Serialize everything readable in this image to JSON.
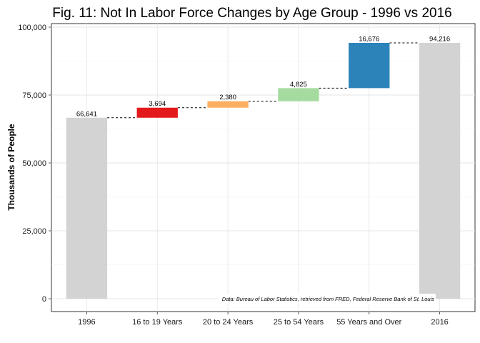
{
  "chart_data": {
    "type": "bar",
    "subtype": "waterfall",
    "title": "Fig. 11: Not In Labor Force Changes by Age Group - 1996 vs 2016",
    "xlabel": "",
    "ylabel": "Thousands of People",
    "ylim": [
      0,
      100000
    ],
    "yticks": [
      0,
      25000,
      50000,
      75000,
      100000
    ],
    "ytick_labels": [
      "0",
      "25,000",
      "50,000",
      "75,000",
      "100,000"
    ],
    "grid": true,
    "legend": "none",
    "categories": [
      "1996",
      "16 to 19 Years",
      "20 to 24 Years",
      "25 to 54 Years",
      "55 Years and Over",
      "2016"
    ],
    "bars": [
      {
        "category": "1996",
        "kind": "total",
        "start": 0,
        "end": 66641,
        "label": "66,641",
        "color": "#d3d3d3"
      },
      {
        "category": "16 to 19 Years",
        "kind": "change",
        "start": 66641,
        "end": 70335,
        "label": "3,694",
        "color": "#e31a1c"
      },
      {
        "category": "20 to 24 Years",
        "kind": "change",
        "start": 70335,
        "end": 72715,
        "label": "2,380",
        "color": "#fdae61"
      },
      {
        "category": "25 to 54 Years",
        "kind": "change",
        "start": 72715,
        "end": 77540,
        "label": "4,825",
        "color": "#a6dba0"
      },
      {
        "category": "55 Years and Over",
        "kind": "change",
        "start": 77540,
        "end": 94216,
        "label": "16,676",
        "color": "#2b83ba"
      },
      {
        "category": "2016",
        "kind": "total",
        "start": 0,
        "end": 94216,
        "label": "94,216",
        "color": "#d3d3d3"
      }
    ],
    "caption": "Data: Bureau of Labor Statistics, retrieved from FRED, Federal Reserve Bank of St. Louis"
  }
}
